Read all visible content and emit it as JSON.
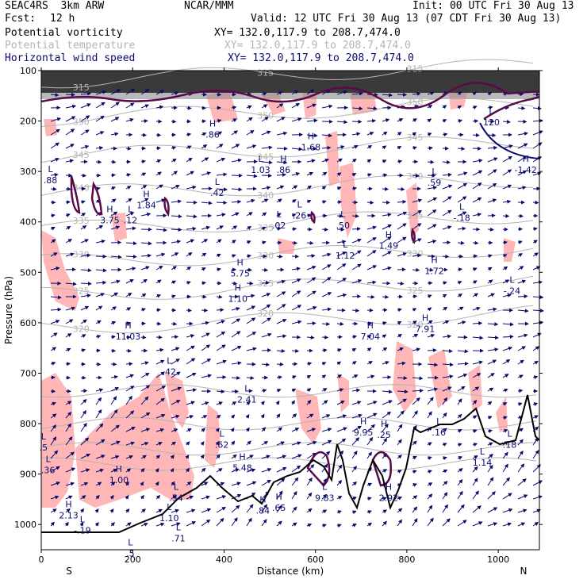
{
  "header": {
    "model": "SEAC4RS  3km ARW",
    "center": "NCAR/MMM",
    "init": "Init: 00 UTC Fri 30 Aug 13",
    "fcst_label": "Fcst:",
    "fcst_value": "12 h",
    "valid": "Valid: 12 UTC Fri 30 Aug 13 (07 CDT Fri 30 Aug 13)"
  },
  "fields": [
    {
      "name": "Potential vorticity",
      "xy": "XY= 132.0,117.9 to 208.7,474.0"
    },
    {
      "name": "Potential temperature",
      "xy": "XY= 132.0,117.9 to 208.7,474.0"
    },
    {
      "name": "Horizontal wind speed",
      "xy": "XY= 132.0,117.9 to 208.7,474.0"
    }
  ],
  "colors": {
    "pv": "#5a0a4a",
    "theta": "#b4b4b4",
    "wind": "#0a0a6e",
    "shading": "#ffb6b6",
    "terrain": "#000000"
  },
  "chart_data": {
    "type": "cross-section",
    "xlabel": "Distance (km)",
    "ylabel": "Pressure (hPa)",
    "x_ticks": [
      0,
      200,
      400,
      600,
      800,
      1000
    ],
    "y_ticks": [
      100,
      200,
      300,
      400,
      500,
      600,
      700,
      800,
      900,
      1000
    ],
    "xlim": [
      0,
      1090
    ],
    "ylim": [
      1050,
      100
    ],
    "left_end": "S",
    "right_end": "N",
    "theta_contours": [
      {
        "label": "315",
        "p": 120
      },
      {
        "label": "350",
        "p": 195
      },
      {
        "label": "345",
        "p": 270
      },
      {
        "label": "340",
        "p": 345
      },
      {
        "label": "335",
        "p": 415
      },
      {
        "label": "330",
        "p": 480
      },
      {
        "label": "325",
        "p": 545
      },
      {
        "label": "320",
        "p": 610
      }
    ],
    "wind_extrema": [
      {
        "kind": "L",
        "value": ".88",
        "x": 20,
        "p": 320
      },
      {
        "kind": "H",
        "value": "3.75",
        "x": 150,
        "p": 400
      },
      {
        "kind": "L",
        "value": ".12",
        "x": 195,
        "p": 400
      },
      {
        "kind": "H",
        "value": "1.84",
        "x": 230,
        "p": 370
      },
      {
        "kind": "L",
        "value": ".42",
        "x": 385,
        "p": 345
      },
      {
        "kind": "H",
        "value": ".86",
        "x": 375,
        "p": 230
      },
      {
        "kind": "H",
        "value": "1.68",
        "x": 590,
        "p": 255
      },
      {
        "kind": "L",
        "value": "1.03",
        "x": 480,
        "p": 300
      },
      {
        "kind": "H",
        "value": ".86",
        "x": 530,
        "p": 300
      },
      {
        "kind": "L",
        "value": ".26",
        "x": 565,
        "p": 390
      },
      {
        "kind": "L",
        "value": ".02",
        "x": 520,
        "p": 410
      },
      {
        "kind": "L",
        "value": ".50",
        "x": 660,
        "p": 410
      },
      {
        "kind": "L",
        "value": ".59",
        "x": 860,
        "p": 325
      },
      {
        "kind": "L",
        "value": "-.18",
        "x": 920,
        "p": 395
      },
      {
        "kind": "H",
        "value": "1.49",
        "x": 760,
        "p": 450
      },
      {
        "kind": "L",
        "value": "1.12",
        "x": 665,
        "p": 470
      },
      {
        "kind": "H",
        "value": "1.72",
        "x": 860,
        "p": 500
      },
      {
        "kind": "H",
        "value": "5.75",
        "x": 435,
        "p": 505
      },
      {
        "kind": "H",
        "value": "1.10",
        "x": 430,
        "p": 555
      },
      {
        "kind": "L",
        "value": "-.24",
        "x": 1030,
        "p": 540
      },
      {
        "kind": "H",
        "value": "11.03",
        "x": 190,
        "p": 630
      },
      {
        "kind": "H",
        "value": "7.04",
        "x": 720,
        "p": 630
      },
      {
        "kind": "H",
        "value": "7.91",
        "x": 840,
        "p": 615
      },
      {
        "kind": "L",
        "value": ".42",
        "x": 280,
        "p": 700
      },
      {
        "kind": "L",
        "value": "2.41",
        "x": 450,
        "p": 755
      },
      {
        "kind": "H",
        "value": "9.95",
        "x": 705,
        "p": 820
      },
      {
        "kind": "H",
        "value": ".25",
        "x": 750,
        "p": 825
      },
      {
        "kind": "L",
        "value": ".16",
        "x": 870,
        "p": 820
      },
      {
        "kind": "L",
        "value": ".18",
        "x": 1025,
        "p": 845
      },
      {
        "kind": "L",
        "value": ".62",
        "x": 395,
        "p": 845
      },
      {
        "kind": "H",
        "value": "5.48",
        "x": 440,
        "p": 890
      },
      {
        "kind": "H",
        "value": "1.00",
        "x": 170,
        "p": 915
      },
      {
        "kind": "L",
        "value": ".54",
        "x": 295,
        "p": 950
      },
      {
        "kind": "L",
        "value": ".36",
        "x": 15,
        "p": 895
      },
      {
        "kind": "L",
        "value": ".5",
        "x": 5,
        "p": 850
      },
      {
        "kind": "H",
        "value": "2.13",
        "x": 60,
        "p": 985
      },
      {
        "kind": "L",
        "value": "-.19",
        "x": 90,
        "p": 1015
      },
      {
        "kind": "L",
        "value": "1.10",
        "x": 280,
        "p": 990
      },
      {
        "kind": "H",
        "value": ".84",
        "x": 485,
        "p": 975
      },
      {
        "kind": "H",
        "value": ".65",
        "x": 520,
        "p": 970
      },
      {
        "kind": "L",
        "value": "9.83",
        "x": 620,
        "p": 950
      },
      {
        "kind": "H",
        "value": "2.92",
        "x": 760,
        "p": 950
      },
      {
        "kind": "L",
        "value": "1.14",
        "x": 965,
        "p": 880
      },
      {
        "kind": "L",
        "value": ".71",
        "x": 300,
        "p": 1030
      },
      {
        "kind": "L",
        "value": ".5",
        "x": 195,
        "p": 1060
      },
      {
        "kind": "L",
        "value": "120",
        "x": 985,
        "p": 205
      },
      {
        "kind": "H",
        "value": "-1.42",
        "x": 1060,
        "p": 300
      }
    ]
  }
}
